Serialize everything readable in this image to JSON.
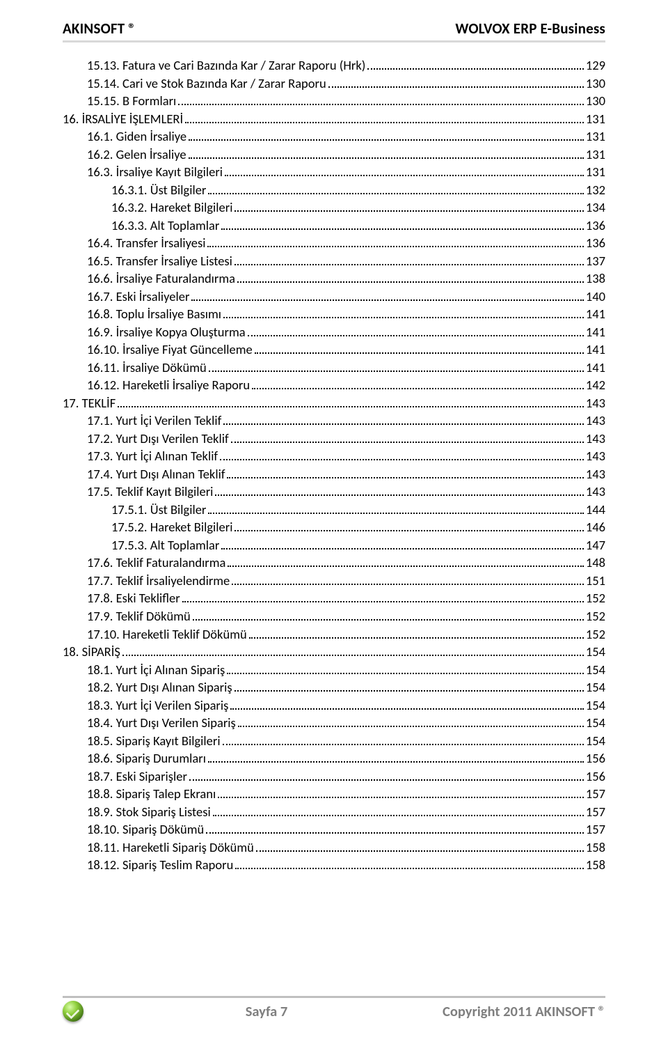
{
  "header": {
    "left": "AKINSOFT ®",
    "right": "WOLVOX ERP E-Business"
  },
  "footer": {
    "center": "Sayfa 7",
    "right": "Copyright 2011 AKINSOFT ®"
  },
  "colors": {
    "rule_top": "#d9d9d9",
    "rule_bottom": "#bfbfbf",
    "text": "#000000",
    "footer_text": "#7f7f7f",
    "background": "#ffffff"
  },
  "toc": [
    {
      "indent": 0,
      "label": "15.13. Fatura ve Cari Bazında Kar / Zarar Raporu (Hrk)",
      "page": "129"
    },
    {
      "indent": 0,
      "label": "15.14. Cari ve Stok Bazında Kar / Zarar Raporu",
      "page": "130"
    },
    {
      "indent": 0,
      "label": "15.15. B Formları",
      "page": "130"
    },
    {
      "indent": 1,
      "label": "16. İRSALİYE İŞLEMLERİ",
      "page": "131"
    },
    {
      "indent": 0,
      "label": "16.1. Giden İrsaliye",
      "page": "131"
    },
    {
      "indent": 0,
      "label": "16.2. Gelen İrsaliye",
      "page": "131"
    },
    {
      "indent": 0,
      "label": "16.3. İrsaliye Kayıt Bilgileri",
      "page": "131"
    },
    {
      "indent": 2,
      "label": "16.3.1. Üst Bilgiler",
      "page": "132"
    },
    {
      "indent": 2,
      "label": "16.3.2. Hareket Bilgileri",
      "page": "134"
    },
    {
      "indent": 2,
      "label": "16.3.3. Alt Toplamlar",
      "page": "136"
    },
    {
      "indent": 0,
      "label": "16.4. Transfer İrsaliyesi",
      "page": "136"
    },
    {
      "indent": 0,
      "label": "16.5. Transfer İrsaliye Listesi",
      "page": "137"
    },
    {
      "indent": 0,
      "label": "16.6. İrsaliye Faturalandırma",
      "page": "138"
    },
    {
      "indent": 0,
      "label": "16.7. Eski İrsaliyeler",
      "page": "140"
    },
    {
      "indent": 0,
      "label": "16.8. Toplu İrsaliye Basımı",
      "page": "141"
    },
    {
      "indent": 0,
      "label": "16.9. İrsaliye Kopya Oluşturma",
      "page": "141"
    },
    {
      "indent": 0,
      "label": "16.10. İrsaliye Fiyat Güncelleme",
      "page": "141"
    },
    {
      "indent": 0,
      "label": "16.11. İrsaliye Dökümü",
      "page": "141"
    },
    {
      "indent": 0,
      "label": "16.12. Hareketli İrsaliye Raporu",
      "page": "142"
    },
    {
      "indent": 1,
      "label": "17. TEKLİF",
      "page": "143"
    },
    {
      "indent": 0,
      "label": "17.1. Yurt İçi Verilen Teklif",
      "page": "143"
    },
    {
      "indent": 0,
      "label": "17.2. Yurt Dışı Verilen Teklif",
      "page": "143"
    },
    {
      "indent": 0,
      "label": "17.3. Yurt İçi Alınan Teklif",
      "page": "143"
    },
    {
      "indent": 0,
      "label": "17.4. Yurt Dışı Alınan Teklif",
      "page": "143"
    },
    {
      "indent": 0,
      "label": "17.5. Teklif Kayıt Bilgileri",
      "page": "143"
    },
    {
      "indent": 2,
      "label": "17.5.1. Üst Bilgiler",
      "page": "144"
    },
    {
      "indent": 2,
      "label": "17.5.2. Hareket Bilgileri",
      "page": "146"
    },
    {
      "indent": 2,
      "label": "17.5.3. Alt Toplamlar",
      "page": "147"
    },
    {
      "indent": 0,
      "label": "17.6. Teklif Faturalandırma",
      "page": "148"
    },
    {
      "indent": 0,
      "label": "17.7. Teklif İrsaliyelendirme",
      "page": "151"
    },
    {
      "indent": 0,
      "label": "17.8. Eski Teklifler",
      "page": "152"
    },
    {
      "indent": 0,
      "label": "17.9. Teklif Dökümü",
      "page": "152"
    },
    {
      "indent": 0,
      "label": "17.10. Hareketli Teklif Dökümü",
      "page": "152"
    },
    {
      "indent": 1,
      "label": "18. SİPARİŞ",
      "page": "154"
    },
    {
      "indent": 0,
      "label": "18.1. Yurt İçi Alınan Sipariş",
      "page": "154"
    },
    {
      "indent": 0,
      "label": "18.2. Yurt Dışı Alınan Sipariş",
      "page": "154"
    },
    {
      "indent": 0,
      "label": "18.3. Yurt İçi Verilen Sipariş",
      "page": "154"
    },
    {
      "indent": 0,
      "label": "18.4. Yurt Dışı Verilen Sipariş",
      "page": "154"
    },
    {
      "indent": 0,
      "label": "18.5. Sipariş Kayıt Bilgileri",
      "page": "154"
    },
    {
      "indent": 0,
      "label": "18.6. Sipariş Durumları",
      "page": "156"
    },
    {
      "indent": 0,
      "label": "18.7. Eski Siparişler",
      "page": "156"
    },
    {
      "indent": 0,
      "label": "18.8. Sipariş Talep Ekranı",
      "page": "157"
    },
    {
      "indent": 0,
      "label": "18.9. Stok Sipariş Listesi",
      "page": "157"
    },
    {
      "indent": 0,
      "label": "18.10. Sipariş Dökümü",
      "page": "157"
    },
    {
      "indent": 0,
      "label": "18.11. Hareketli Sipariş Dökümü",
      "page": "158"
    },
    {
      "indent": 0,
      "label": "18.12. Sipariş Teslim Raporu",
      "page": "158"
    }
  ]
}
